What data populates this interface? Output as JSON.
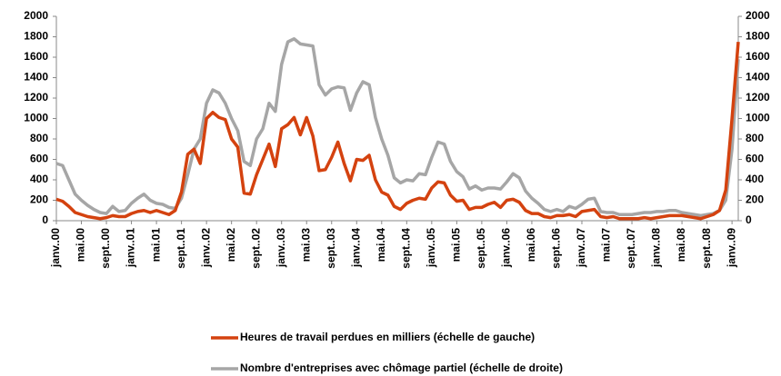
{
  "chart_data": {
    "type": "line",
    "categories": [
      "janv..00",
      null,
      null,
      null,
      "mai.00",
      null,
      null,
      null,
      "sept..00",
      null,
      null,
      null,
      "janv..01",
      null,
      null,
      null,
      "mai.01",
      null,
      null,
      null,
      "sept..01",
      null,
      null,
      null,
      "janv..02",
      null,
      null,
      null,
      "mai.02",
      null,
      null,
      null,
      "sept..02",
      null,
      null,
      null,
      "janv..03",
      null,
      null,
      null,
      "mai.03",
      null,
      null,
      null,
      "sept..03",
      null,
      null,
      null,
      "janv..04",
      null,
      null,
      null,
      "mai.04",
      null,
      null,
      null,
      "sept..04",
      null,
      null,
      null,
      "janv..05",
      null,
      null,
      null,
      "mai.05",
      null,
      null,
      null,
      "sept..05",
      null,
      null,
      null,
      "janv..06",
      null,
      null,
      null,
      "mai.06",
      null,
      null,
      null,
      "sept..06",
      null,
      null,
      null,
      "janv..07",
      null,
      null,
      null,
      "mai.07",
      null,
      null,
      null,
      "sept..07",
      null,
      null,
      null,
      "janv..08",
      null,
      null,
      null,
      "mai.08",
      null,
      null,
      null,
      "sept..08",
      null,
      null,
      null,
      "janv..09",
      null
    ],
    "series": [
      {
        "name": "Heures de travail perdues en milliers (échelle de gauche)",
        "color": "#d4420f",
        "axis": "y",
        "values": [
          210,
          190,
          140,
          80,
          60,
          40,
          30,
          20,
          30,
          50,
          40,
          40,
          70,
          90,
          100,
          80,
          100,
          80,
          60,
          100,
          280,
          650,
          700,
          560,
          1000,
          1060,
          1010,
          990,
          800,
          720,
          270,
          260,
          450,
          600,
          750,
          530,
          900,
          940,
          1010,
          840,
          1010,
          830,
          490,
          500,
          620,
          770,
          560,
          390,
          600,
          590,
          640,
          400,
          280,
          250,
          140,
          110,
          170,
          200,
          220,
          210,
          320,
          380,
          370,
          250,
          190,
          200,
          110,
          130,
          130,
          160,
          180,
          130,
          200,
          210,
          180,
          100,
          70,
          70,
          40,
          30,
          50,
          50,
          60,
          40,
          90,
          100,
          110,
          40,
          30,
          40,
          20,
          20,
          20,
          20,
          30,
          20,
          30,
          40,
          50,
          50,
          50,
          40,
          30,
          20,
          40,
          60,
          100,
          300,
          1000,
          1750
        ]
      },
      {
        "name": "Nombre d'entreprises avec chômage  partiel (échelle de droite)",
        "color": "#a6a6a6",
        "axis": "y2",
        "values": [
          560,
          540,
          400,
          260,
          200,
          150,
          110,
          80,
          70,
          140,
          90,
          100,
          170,
          220,
          260,
          200,
          170,
          160,
          130,
          120,
          220,
          450,
          700,
          800,
          1150,
          1280,
          1250,
          1150,
          1000,
          880,
          580,
          540,
          800,
          900,
          1150,
          1070,
          1530,
          1750,
          1780,
          1730,
          1720,
          1710,
          1330,
          1230,
          1290,
          1310,
          1300,
          1080,
          1250,
          1360,
          1330,
          1010,
          800,
          640,
          420,
          370,
          400,
          390,
          460,
          450,
          620,
          770,
          750,
          580,
          480,
          430,
          310,
          340,
          300,
          320,
          320,
          310,
          380,
          460,
          420,
          290,
          220,
          170,
          110,
          90,
          110,
          90,
          140,
          120,
          160,
          210,
          220,
          90,
          80,
          80,
          60,
          60,
          60,
          70,
          80,
          80,
          90,
          90,
          100,
          100,
          80,
          70,
          60,
          50,
          60,
          70,
          100,
          200,
          700,
          1580
        ]
      }
    ],
    "ylim": [
      0,
      2000
    ],
    "yticks": [
      0,
      200,
      400,
      600,
      800,
      1000,
      1200,
      1400,
      1600,
      1800,
      2000
    ],
    "y2lim": [
      0,
      2000
    ],
    "y2ticks": [
      0,
      200,
      400,
      600,
      800,
      1000,
      1200,
      1400,
      1600,
      1800,
      2000
    ],
    "legend": "bottom"
  }
}
